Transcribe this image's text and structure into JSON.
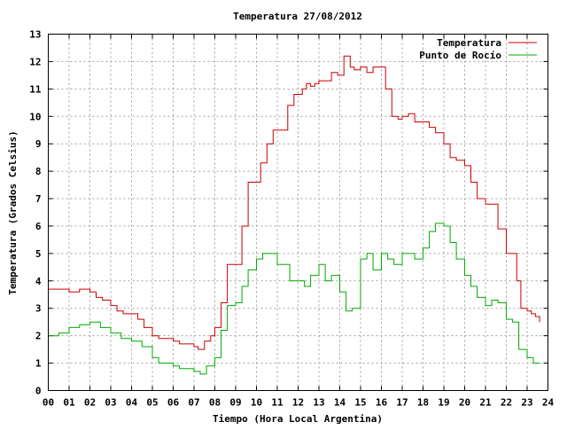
{
  "chart_data": {
    "type": "line",
    "title": "Temperatura 27/08/2012",
    "xlabel": "Tiempo (Hora Local Argentina)",
    "ylabel": "Temperatura (Grados Celsius)",
    "xlim": [
      0,
      24
    ],
    "ylim": [
      0,
      13
    ],
    "x_tick_labels": [
      "00",
      "01",
      "02",
      "03",
      "04",
      "05",
      "06",
      "07",
      "08",
      "09",
      "10",
      "11",
      "12",
      "13",
      "14",
      "15",
      "16",
      "17",
      "18",
      "19",
      "20",
      "21",
      "22",
      "23",
      "24"
    ],
    "y_ticks": [
      0,
      1,
      2,
      3,
      4,
      5,
      6,
      7,
      8,
      9,
      10,
      11,
      12,
      13
    ],
    "grid": true,
    "legend_position": "top-right",
    "series": [
      {
        "name": "Temperatura",
        "color": "#cc0000",
        "x": [
          0.0,
          0.5,
          1.0,
          1.5,
          2.0,
          2.3,
          2.6,
          3.0,
          3.3,
          3.6,
          4.0,
          4.3,
          4.6,
          5.0,
          5.3,
          5.6,
          6.0,
          6.3,
          6.6,
          7.0,
          7.2,
          7.5,
          7.8,
          8.0,
          8.3,
          8.6,
          9.0,
          9.3,
          9.6,
          10.0,
          10.2,
          10.5,
          10.8,
          11.0,
          11.2,
          11.5,
          11.8,
          12.0,
          12.2,
          12.4,
          12.6,
          12.8,
          13.0,
          13.3,
          13.6,
          13.9,
          14.2,
          14.5,
          14.7,
          15.0,
          15.3,
          15.6,
          16.0,
          16.2,
          16.5,
          16.8,
          17.0,
          17.3,
          17.6,
          18.0,
          18.3,
          18.6,
          19.0,
          19.3,
          19.6,
          20.0,
          20.3,
          20.6,
          21.0,
          21.3,
          21.6,
          22.0,
          22.3,
          22.5,
          22.7,
          23.0,
          23.2,
          23.4,
          23.6
        ],
        "y": [
          3.7,
          3.7,
          3.6,
          3.7,
          3.6,
          3.4,
          3.3,
          3.1,
          2.9,
          2.8,
          2.8,
          2.6,
          2.3,
          2.0,
          1.9,
          1.9,
          1.8,
          1.7,
          1.7,
          1.6,
          1.5,
          1.8,
          2.0,
          2.3,
          3.2,
          4.6,
          4.6,
          6.0,
          7.6,
          7.6,
          8.3,
          9.0,
          9.5,
          9.5,
          9.5,
          10.4,
          10.8,
          10.8,
          11.0,
          11.2,
          11.1,
          11.2,
          11.3,
          11.3,
          11.6,
          11.5,
          12.2,
          11.8,
          11.7,
          11.8,
          11.6,
          11.8,
          11.8,
          11.0,
          10.0,
          9.9,
          10.0,
          10.1,
          9.8,
          9.8,
          9.6,
          9.4,
          9.0,
          8.5,
          8.4,
          8.2,
          7.6,
          7.0,
          6.8,
          6.8,
          5.9,
          5.0,
          5.0,
          4.0,
          3.0,
          2.9,
          2.8,
          2.7,
          2.5
        ]
      },
      {
        "name": "Punto de Rocío",
        "color": "#00aa00",
        "x": [
          0.0,
          0.5,
          1.0,
          1.5,
          2.0,
          2.5,
          3.0,
          3.5,
          4.0,
          4.5,
          5.0,
          5.3,
          5.6,
          6.0,
          6.3,
          6.6,
          7.0,
          7.3,
          7.6,
          8.0,
          8.3,
          8.6,
          9.0,
          9.3,
          9.6,
          10.0,
          10.3,
          10.6,
          11.0,
          11.3,
          11.6,
          12.0,
          12.3,
          12.6,
          13.0,
          13.3,
          13.6,
          14.0,
          14.3,
          14.6,
          15.0,
          15.3,
          15.6,
          16.0,
          16.3,
          16.6,
          17.0,
          17.3,
          17.6,
          18.0,
          18.3,
          18.6,
          19.0,
          19.3,
          19.6,
          20.0,
          20.3,
          20.6,
          21.0,
          21.3,
          21.6,
          22.0,
          22.3,
          22.6,
          23.0,
          23.3,
          23.6
        ],
        "y": [
          2.0,
          2.1,
          2.3,
          2.4,
          2.5,
          2.3,
          2.1,
          1.9,
          1.8,
          1.6,
          1.2,
          1.0,
          1.0,
          0.9,
          0.8,
          0.8,
          0.7,
          0.6,
          0.9,
          1.2,
          2.2,
          3.1,
          3.2,
          3.8,
          4.4,
          4.8,
          5.0,
          5.0,
          4.6,
          4.6,
          4.0,
          4.0,
          3.8,
          4.2,
          4.6,
          4.0,
          4.2,
          3.6,
          2.9,
          3.0,
          4.8,
          5.0,
          4.4,
          5.0,
          4.8,
          4.6,
          5.0,
          5.0,
          4.8,
          5.2,
          5.8,
          6.1,
          6.0,
          5.4,
          4.8,
          4.2,
          3.8,
          3.4,
          3.1,
          3.3,
          3.2,
          2.6,
          2.5,
          1.5,
          1.2,
          1.0,
          1.0
        ]
      }
    ]
  }
}
